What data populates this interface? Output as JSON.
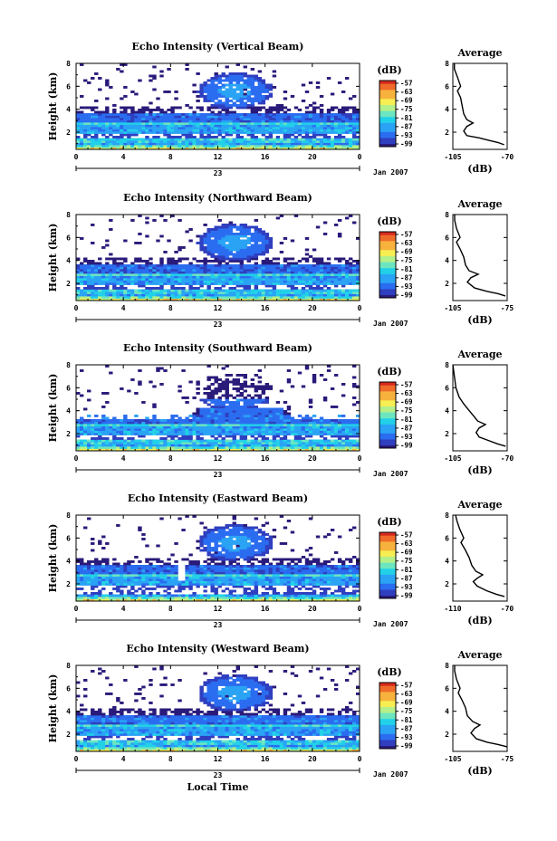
{
  "x_axis_label": "Local Time",
  "date_label": "Jan 2007",
  "day_label": "23",
  "chart_data": [
    {
      "type": "heatmap",
      "title": "Echo Intensity (Vertical Beam)",
      "ylabel": "Height (km)",
      "xlabel": "",
      "x_ticks": [
        "0",
        "4",
        "8",
        "12",
        "16",
        "20",
        "0"
      ],
      "y_ticks": [
        "2",
        "4",
        "6",
        "8"
      ],
      "xlim": [
        0,
        24
      ],
      "ylim": [
        0.5,
        8
      ],
      "colorbar": {
        "label": "(dB)",
        "ticks": [
          "-57",
          "-63",
          "-69",
          "-75",
          "-81",
          "-87",
          "-93",
          "-99"
        ]
      },
      "profile": {
        "title": "Average",
        "xlabel": "(dB)",
        "x_ticks": [
          "-105",
          "-70"
        ],
        "xlim": [
          -105,
          -70
        ],
        "y_ticks": [
          "2",
          "4",
          "6",
          "8"
        ],
        "points": [
          [
            -72,
            0.9
          ],
          [
            -76,
            1.1
          ],
          [
            -82,
            1.3
          ],
          [
            -88,
            1.5
          ],
          [
            -96,
            1.7
          ],
          [
            -98,
            2.1
          ],
          [
            -96,
            2.5
          ],
          [
            -92,
            2.8
          ],
          [
            -96,
            3.1
          ],
          [
            -98,
            3.6
          ],
          [
            -99,
            4.3
          ],
          [
            -100,
            5.0
          ],
          [
            -102,
            5.6
          ],
          [
            -100,
            6.0
          ],
          [
            -102,
            6.8
          ],
          [
            -104,
            7.5
          ],
          [
            -104,
            8.0
          ]
        ]
      }
    },
    {
      "type": "heatmap",
      "title": "Echo Intensity (Northward Beam)",
      "ylabel": "Height (km)",
      "xlabel": "",
      "x_ticks": [
        "0",
        "4",
        "8",
        "12",
        "16",
        "20",
        "0"
      ],
      "y_ticks": [
        "2",
        "4",
        "6",
        "8"
      ],
      "xlim": [
        0,
        24
      ],
      "ylim": [
        0.5,
        8
      ],
      "colorbar": {
        "label": "(dB)",
        "ticks": [
          "-57",
          "-63",
          "-69",
          "-75",
          "-81",
          "-87",
          "-93",
          "-99"
        ]
      },
      "profile": {
        "title": "Average",
        "xlabel": "(dB)",
        "x_ticks": [
          "-105",
          "-75"
        ],
        "xlim": [
          -105,
          -75
        ],
        "y_ticks": [
          "2",
          "4",
          "6",
          "8"
        ],
        "points": [
          [
            -76,
            0.9
          ],
          [
            -80,
            1.1
          ],
          [
            -86,
            1.3
          ],
          [
            -93,
            1.6
          ],
          [
            -97,
            2.1
          ],
          [
            -95,
            2.5
          ],
          [
            -91,
            2.8
          ],
          [
            -96,
            3.1
          ],
          [
            -98,
            3.6
          ],
          [
            -99,
            4.3
          ],
          [
            -101,
            5.0
          ],
          [
            -103,
            5.6
          ],
          [
            -101,
            6.0
          ],
          [
            -103,
            6.8
          ],
          [
            -104,
            7.5
          ],
          [
            -104,
            8.0
          ]
        ]
      }
    },
    {
      "type": "heatmap",
      "title": "Echo Intensity (Southward Beam)",
      "ylabel": "Height (km)",
      "xlabel": "",
      "x_ticks": [
        "0",
        "4",
        "8",
        "12",
        "16",
        "20",
        "0"
      ],
      "y_ticks": [
        "2",
        "4",
        "6",
        "8"
      ],
      "xlim": [
        0,
        24
      ],
      "ylim": [
        0.5,
        8
      ],
      "colorbar": {
        "label": "(dB)",
        "ticks": [
          "-57",
          "-63",
          "-69",
          "-75",
          "-81",
          "-87",
          "-93",
          "-99"
        ]
      },
      "profile": {
        "title": "Average",
        "xlabel": "(dB)",
        "x_ticks": [
          "-105",
          "-70"
        ],
        "xlim": [
          -105,
          -70
        ],
        "y_ticks": [
          "2",
          "4",
          "6",
          "8"
        ],
        "points": [
          [
            -71,
            0.9
          ],
          [
            -76,
            1.1
          ],
          [
            -82,
            1.4
          ],
          [
            -88,
            1.7
          ],
          [
            -90,
            2.1
          ],
          [
            -88,
            2.5
          ],
          [
            -84,
            2.8
          ],
          [
            -89,
            3.1
          ],
          [
            -92,
            3.6
          ],
          [
            -95,
            4.1
          ],
          [
            -98,
            4.6
          ],
          [
            -101,
            5.2
          ],
          [
            -103,
            6.0
          ],
          [
            -104,
            7.0
          ],
          [
            -105,
            8.0
          ]
        ]
      }
    },
    {
      "type": "heatmap",
      "title": "Echo Intensity (Eastward Beam)",
      "ylabel": "Height (km)",
      "xlabel": "",
      "x_ticks": [
        "0",
        "4",
        "8",
        "12",
        "16",
        "20",
        "0"
      ],
      "y_ticks": [
        "2",
        "4",
        "6",
        "8"
      ],
      "xlim": [
        0,
        24
      ],
      "ylim": [
        0.5,
        8
      ],
      "colorbar": {
        "label": "(dB)",
        "ticks": [
          "-57",
          "-63",
          "-69",
          "-75",
          "-81",
          "-87",
          "-93",
          "-99"
        ]
      },
      "profile": {
        "title": "Average",
        "xlabel": "(dB)",
        "x_ticks": [
          "-110",
          "-70"
        ],
        "xlim": [
          -110,
          -70
        ],
        "y_ticks": [
          "2",
          "4",
          "6",
          "8"
        ],
        "points": [
          [
            -72,
            0.9
          ],
          [
            -78,
            1.1
          ],
          [
            -85,
            1.4
          ],
          [
            -92,
            1.8
          ],
          [
            -95,
            2.2
          ],
          [
            -92,
            2.5
          ],
          [
            -88,
            2.8
          ],
          [
            -93,
            3.1
          ],
          [
            -96,
            3.6
          ],
          [
            -98,
            4.3
          ],
          [
            -101,
            5.0
          ],
          [
            -104,
            5.6
          ],
          [
            -102,
            6.0
          ],
          [
            -105,
            6.8
          ],
          [
            -107,
            7.5
          ],
          [
            -108,
            8.0
          ]
        ]
      }
    },
    {
      "type": "heatmap",
      "title": "Echo Intensity (Westward Beam)",
      "ylabel": "Height (km)",
      "xlabel": "Local Time",
      "x_ticks": [
        "0",
        "4",
        "8",
        "12",
        "16",
        "20",
        "0"
      ],
      "y_ticks": [
        "2",
        "4",
        "6",
        "8"
      ],
      "xlim": [
        0,
        24
      ],
      "ylim": [
        0.5,
        8
      ],
      "colorbar": {
        "label": "(dB)",
        "ticks": [
          "-57",
          "-63",
          "-69",
          "-75",
          "-81",
          "-87",
          "-93",
          "-99"
        ]
      },
      "profile": {
        "title": "Average",
        "xlabel": "(dB)",
        "x_ticks": [
          "-105",
          "-75"
        ],
        "xlim": [
          -105,
          -75
        ],
        "y_ticks": [
          "2",
          "4",
          "6",
          "8"
        ],
        "points": [
          [
            -75,
            0.9
          ],
          [
            -80,
            1.1
          ],
          [
            -86,
            1.3
          ],
          [
            -92,
            1.6
          ],
          [
            -95,
            2.1
          ],
          [
            -93,
            2.5
          ],
          [
            -90,
            2.8
          ],
          [
            -94,
            3.1
          ],
          [
            -97,
            3.6
          ],
          [
            -98,
            4.3
          ],
          [
            -100,
            5.0
          ],
          [
            -102,
            5.6
          ],
          [
            -101,
            6.0
          ],
          [
            -103,
            6.8
          ],
          [
            -104,
            7.5
          ],
          [
            -104,
            8.0
          ]
        ]
      }
    }
  ]
}
